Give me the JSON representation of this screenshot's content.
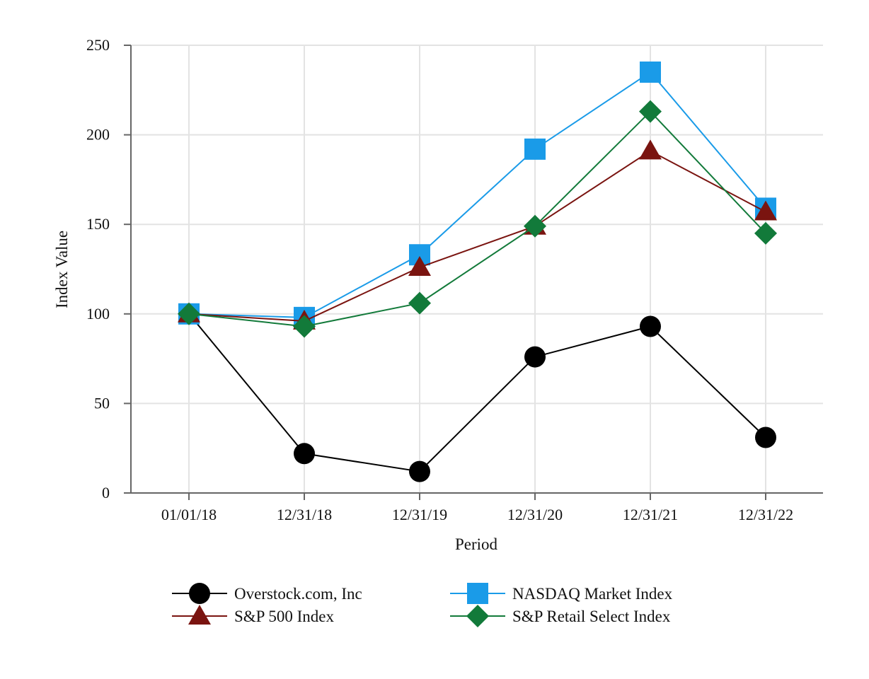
{
  "chart_data": {
    "type": "line",
    "xlabel": "Period",
    "ylabel": "Index Value",
    "categories": [
      "01/01/18",
      "12/31/18",
      "12/31/19",
      "12/31/20",
      "12/31/21",
      "12/31/22"
    ],
    "ylim": [
      0,
      250
    ],
    "yticks": [
      0,
      50,
      100,
      150,
      200,
      250
    ],
    "grid": true,
    "legend_position": "bottom",
    "series": [
      {
        "name": "Overstock.com, Inc",
        "values": [
          100,
          22,
          12,
          76,
          93,
          31
        ],
        "color": "#000000",
        "marker": "circle"
      },
      {
        "name": "NASDAQ Market Index",
        "values": [
          100,
          98,
          133,
          192,
          235,
          159
        ],
        "color": "#1a9be8",
        "marker": "square"
      },
      {
        "name": "S&P 500 Index",
        "values": [
          100,
          96,
          126,
          149,
          191,
          157
        ],
        "color": "#7a1410",
        "marker": "triangle"
      },
      {
        "name": "S&P Retail Select Index",
        "values": [
          100,
          93,
          106,
          149,
          213,
          145
        ],
        "color": "#127a3a",
        "marker": "diamond"
      }
    ]
  }
}
